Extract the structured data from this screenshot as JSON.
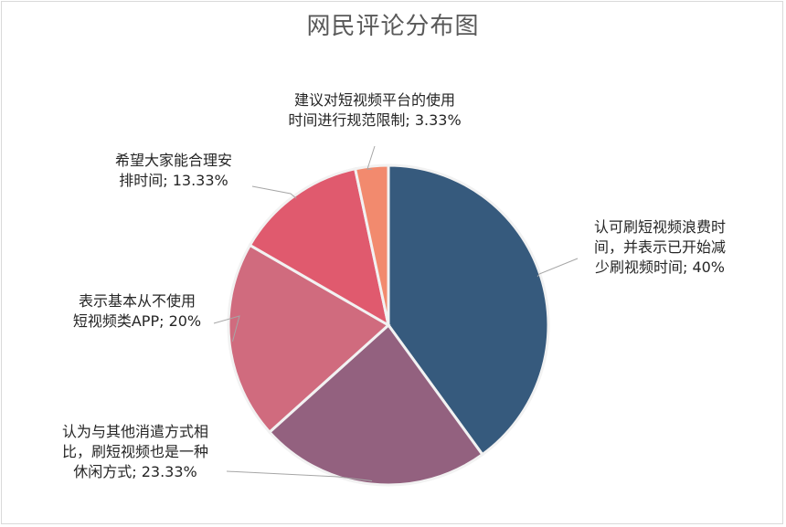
{
  "chart_data": {
    "type": "pie",
    "title": "网民评论分布图",
    "slices": [
      {
        "label_lines": [
          "认可刷短视频浪费时",
          "间，并表示已开始减",
          "少刷视频时间; 40%"
        ],
        "value": 40,
        "color": "#365a7d"
      },
      {
        "label_lines": [
          "认为与其他消遣方式相",
          "比，刷短视频也是一种",
          "休闲方式; 23.33%"
        ],
        "value": 23.33,
        "color": "#93617f"
      },
      {
        "label_lines": [
          "表示基本从不使用",
          "短视频类APP; 20%"
        ],
        "value": 20,
        "color": "#d06b7e"
      },
      {
        "label_lines": [
          "希望大家能合理安",
          "排时间; 13.33%"
        ],
        "value": 13.33,
        "color": "#e05a6e"
      },
      {
        "label_lines": [
          "建议对短视频平台的使用",
          "时间进行规范限制; 3.33%"
        ],
        "value": 3.33,
        "color": "#f28a6e"
      }
    ]
  }
}
